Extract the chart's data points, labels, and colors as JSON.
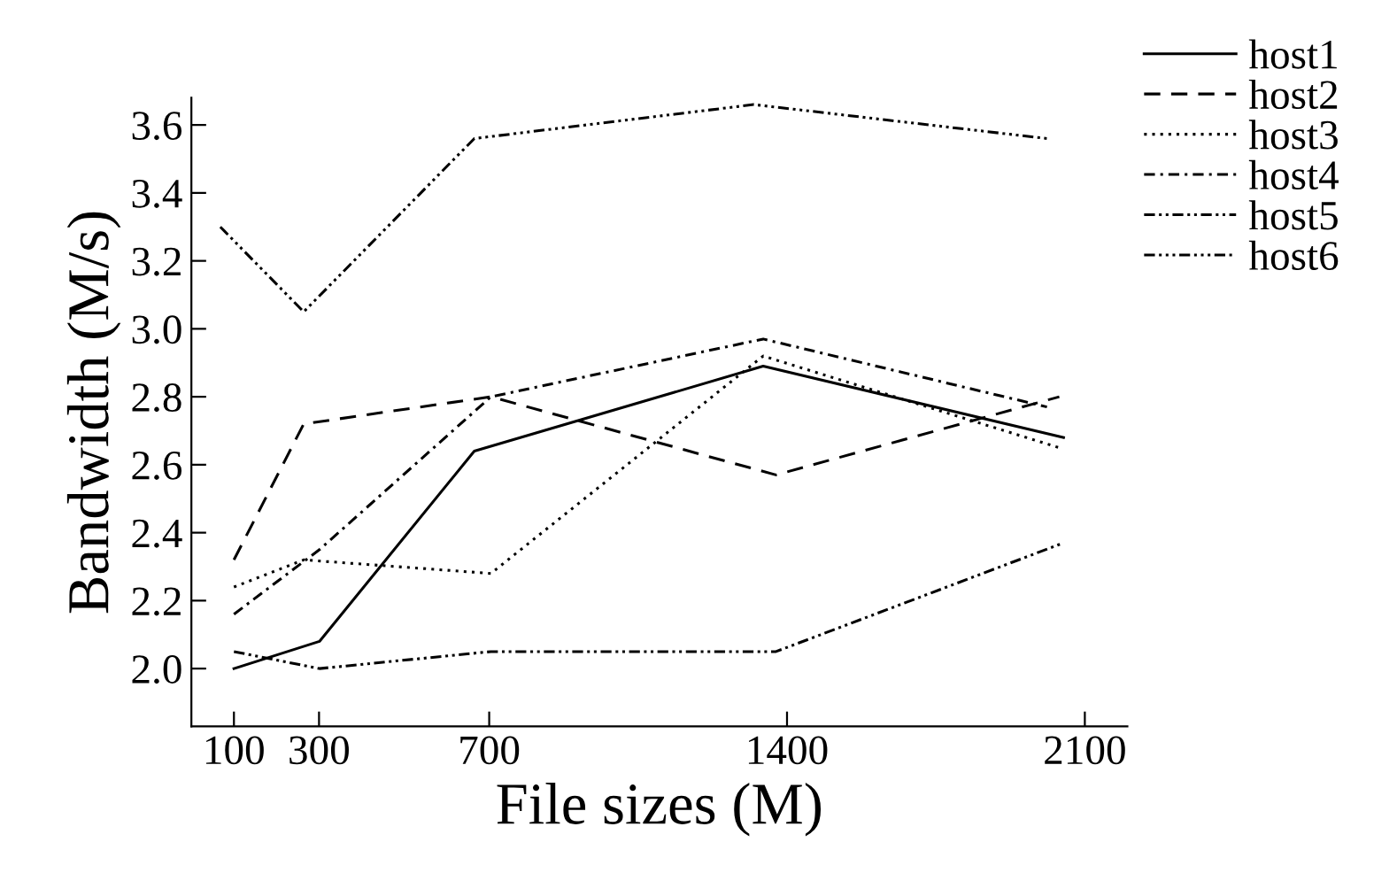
{
  "chart_data": {
    "type": "line",
    "xlabel": "File sizes (M)",
    "ylabel": "Bandwidth (M/s)",
    "xlim": [
      0,
      2200
    ],
    "xticks": [
      100,
      300,
      700,
      1400,
      2100
    ],
    "ylim": [
      1.83,
      3.68
    ],
    "yticks": [
      {
        "value": 2.0,
        "label": "2.0"
      },
      {
        "value": 2.2,
        "label": "2.2"
      },
      {
        "value": 2.4,
        "label": "2.4"
      },
      {
        "value": 2.6,
        "label": "2.6"
      },
      {
        "value": 2.8,
        "label": "2.8"
      },
      {
        "value": 3.0,
        "label": "3.0"
      },
      {
        "value": 3.2,
        "label": "3.2"
      },
      {
        "value": 3.4,
        "label": "3.4"
      },
      {
        "value": 3.6,
        "label": "3.6"
      }
    ],
    "grid": false,
    "legend": "top right",
    "marker": "none",
    "series": [
      {
        "name": "host1",
        "color": "#000000",
        "line_style": "solid",
        "x": [
          100,
          301,
          665,
          1344,
          2050
        ],
        "values": [
          2.0,
          2.08,
          2.64,
          2.89,
          2.68
        ]
      },
      {
        "name": "host2",
        "color": "#000000",
        "line_style": "dashed",
        "x": [
          100,
          264,
          704,
          1374,
          2040
        ],
        "values": [
          2.32,
          2.72,
          2.8,
          2.57,
          2.8
        ]
      },
      {
        "name": "host3",
        "color": "#000000",
        "line_style": "dotted",
        "x": [
          100,
          264,
          704,
          1344,
          2040
        ],
        "values": [
          2.24,
          2.32,
          2.28,
          2.92,
          2.65
        ]
      },
      {
        "name": "host4",
        "color": "#000000",
        "line_style": "dashdot",
        "x": [
          100,
          301,
          704,
          1344,
          2011
        ],
        "values": [
          2.16,
          2.35,
          2.8,
          2.97,
          2.77
        ]
      },
      {
        "name": "host5",
        "color": "#000000",
        "line_style": "dashdotdot",
        "x": [
          100,
          301,
          704,
          1374,
          2050
        ],
        "values": [
          2.05,
          2.0,
          2.05,
          2.05,
          2.37
        ]
      },
      {
        "name": "host6",
        "color": "#000000",
        "line_style": "dashdotdotdot",
        "x": [
          68,
          264,
          665,
          1322,
          2011
        ],
        "values": [
          3.3,
          3.05,
          3.56,
          3.66,
          3.56
        ]
      }
    ]
  }
}
